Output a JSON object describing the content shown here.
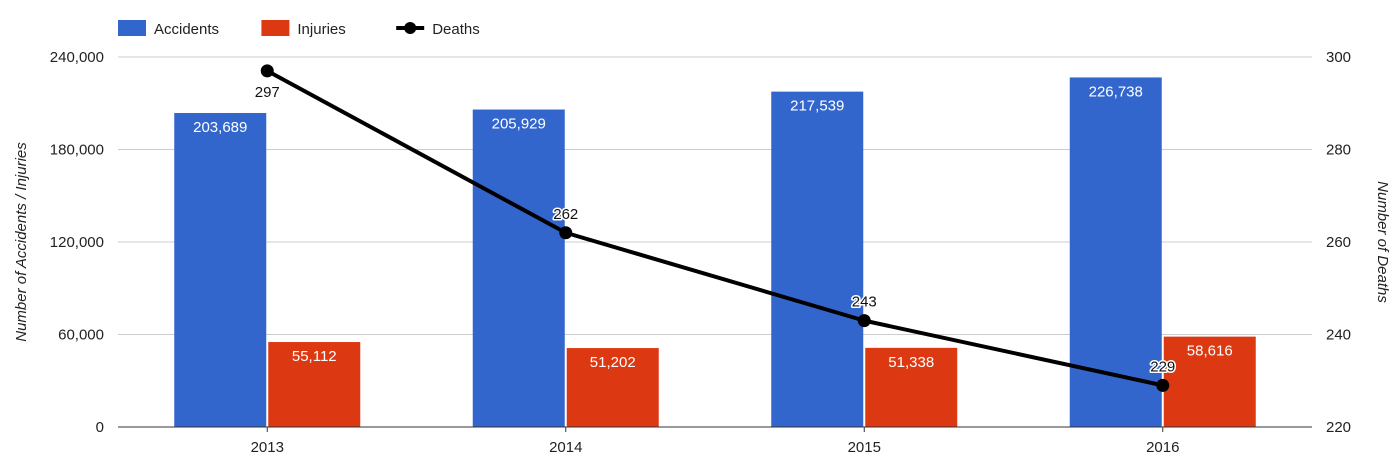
{
  "chart_data": {
    "type": "bar",
    "categories": [
      "2013",
      "2014",
      "2015",
      "2016"
    ],
    "series": [
      {
        "name": "Accidents",
        "type": "bar",
        "axis": "left",
        "color": "#3366cc",
        "values": [
          203689,
          205929,
          217539,
          226738
        ],
        "labels": [
          "203,689",
          "205,929",
          "217,539",
          "226,738"
        ]
      },
      {
        "name": "Injuries",
        "type": "bar",
        "axis": "left",
        "color": "#dc3912",
        "values": [
          55112,
          51202,
          51338,
          58616
        ],
        "labels": [
          "55,112",
          "51,202",
          "51,338",
          "58,616"
        ]
      },
      {
        "name": "Deaths",
        "type": "line",
        "axis": "right",
        "color": "#000000",
        "values": [
          297,
          262,
          243,
          229
        ],
        "labels": [
          "297",
          "262",
          "243",
          "229"
        ]
      }
    ],
    "y_left": {
      "label": "Number of Accidents / Injuries",
      "range": [
        0,
        240000
      ],
      "ticks": [
        0,
        60000,
        120000,
        180000,
        240000
      ],
      "tick_labels": [
        "0",
        "60,000",
        "120,000",
        "180,000",
        "240,000"
      ]
    },
    "y_right": {
      "label": "Number of Deaths",
      "range": [
        220,
        300
      ],
      "ticks": [
        220,
        240,
        260,
        280,
        300
      ],
      "tick_labels": [
        "220",
        "240",
        "260",
        "280",
        "300"
      ]
    },
    "grid": true,
    "legend_position": "top-left"
  }
}
